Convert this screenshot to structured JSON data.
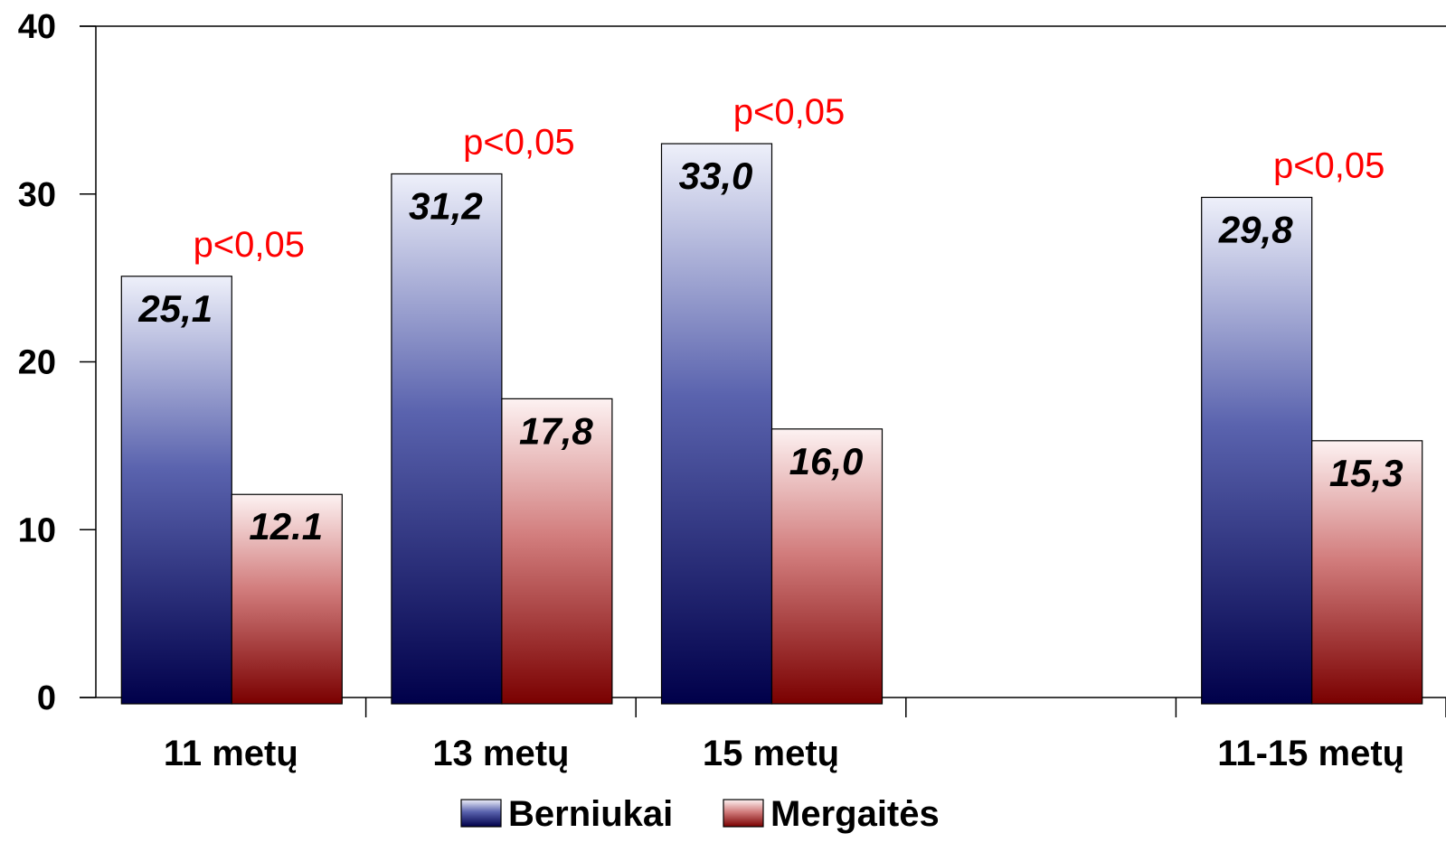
{
  "chart_data": {
    "type": "bar",
    "categories": [
      "11 metų",
      "13 metų",
      "15 metų",
      "",
      "11-15 metų"
    ],
    "series": [
      {
        "name": "Berniukai",
        "values": [
          25.1,
          31.2,
          33.0,
          null,
          29.8
        ],
        "labels": [
          "25,1",
          "31,2",
          "33,0",
          "",
          "29,8"
        ],
        "color_top": "#eef0fa",
        "color_bottom": "#00004a"
      },
      {
        "name": "Mergaitės",
        "values": [
          12.1,
          17.8,
          16.0,
          null,
          15.3
        ],
        "labels": [
          "12.1",
          "17,8",
          "16,0",
          "",
          "15,3"
        ],
        "color_top": "#fdf2f2",
        "color_bottom": "#7a0000"
      }
    ],
    "annotations": [
      "p<0,05",
      "p<0,05",
      "p<0,05",
      "",
      "p<0,05"
    ],
    "annotation_color": "#ff0000",
    "ylim": [
      0,
      40
    ],
    "yticks": [
      "0",
      "10",
      "20",
      "30",
      "40"
    ],
    "xlabel": "",
    "ylabel": "",
    "title": "",
    "legend_position": "bottom",
    "grid": false
  }
}
